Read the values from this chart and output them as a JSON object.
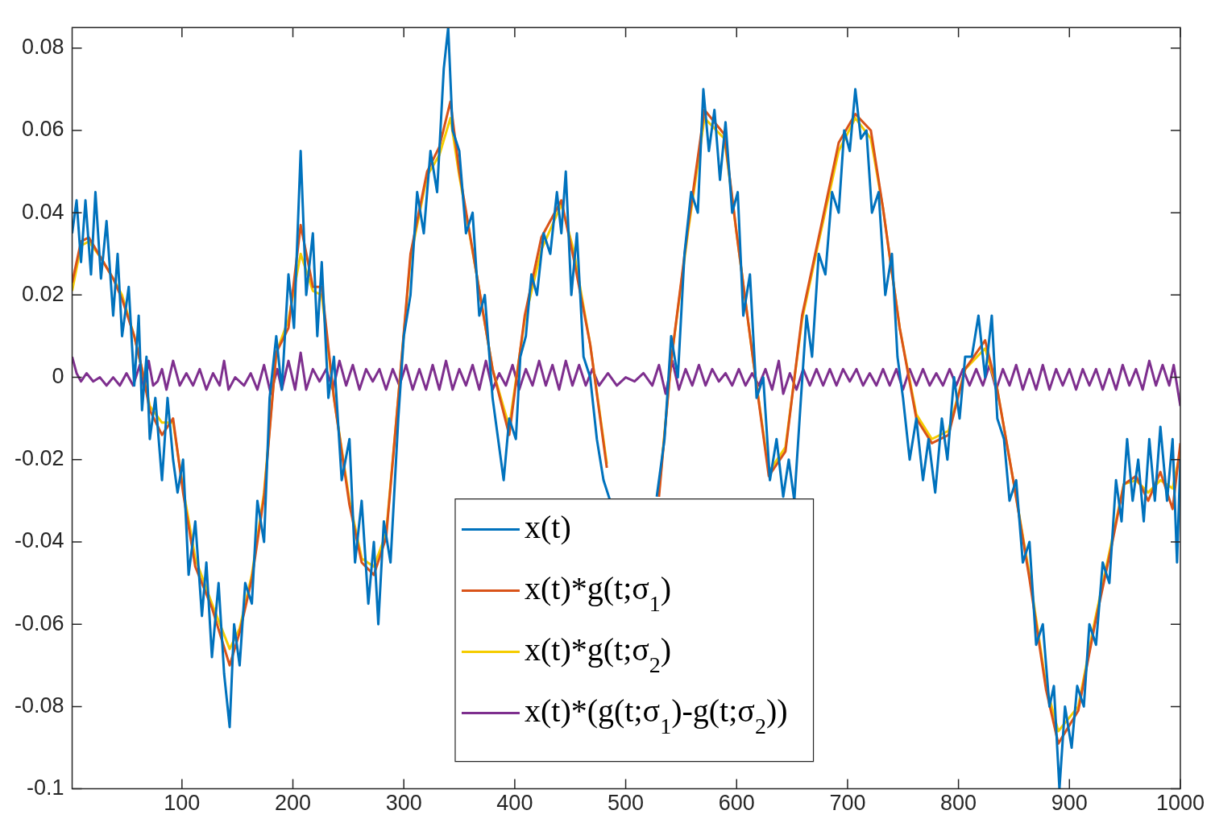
{
  "chart_data": {
    "type": "line",
    "xlim": [
      1,
      1000
    ],
    "xticks": [
      100,
      200,
      300,
      400,
      500,
      600,
      700,
      800,
      900,
      1000
    ],
    "ylim": [
      -0.1,
      0.085
    ],
    "yticks": [
      -0.1,
      -0.08,
      -0.06,
      -0.04,
      -0.02,
      0,
      0.02,
      0.04,
      0.06,
      0.08
    ],
    "grid": false,
    "legend": "bottom",
    "line_style": "solid",
    "marker": "none",
    "series": [
      {
        "name": "x(t)",
        "color": "#0072bd",
        "x": [
          1,
          5,
          9,
          13,
          18,
          22,
          27,
          32,
          38,
          42,
          46,
          52,
          57,
          61,
          64,
          68,
          71,
          76,
          82,
          87,
          92,
          96,
          101,
          106,
          112,
          118,
          122,
          127,
          133,
          138,
          143,
          147,
          152,
          157,
          163,
          168,
          174,
          179,
          185,
          190,
          196,
          201,
          207,
          212,
          218,
          222,
          226,
          232,
          237,
          244,
          251,
          256,
          262,
          268,
          273,
          277,
          282,
          288,
          295,
          300,
          306,
          312,
          318,
          324,
          330,
          336,
          340,
          344,
          350,
          356,
          362,
          368,
          373,
          380,
          385,
          390,
          395,
          401,
          405,
          410,
          415,
          420,
          426,
          432,
          438,
          442,
          446,
          451,
          456,
          462,
          468,
          474,
          480,
          486,
          505,
          528,
          535,
          541,
          547,
          553,
          559,
          565,
          570,
          575,
          580,
          585,
          590,
          596,
          601,
          606,
          612,
          618,
          624,
          630,
          636,
          642,
          647,
          652,
          658,
          663,
          668,
          674,
          680,
          686,
          692,
          697,
          702,
          707,
          712,
          717,
          722,
          728,
          734,
          740,
          745,
          750,
          756,
          762,
          768,
          773,
          779,
          785,
          790,
          796,
          801,
          806,
          812,
          818,
          824,
          830,
          835,
          841,
          846,
          852,
          858,
          864,
          870,
          876,
          882,
          886,
          891,
          896,
          902,
          907,
          913,
          918,
          924,
          930,
          936,
          942,
          947,
          952,
          957,
          962,
          967,
          972,
          977,
          982,
          988,
          993,
          997,
          1000
        ],
        "values": [
          0.035,
          0.043,
          0.028,
          0.043,
          0.025,
          0.045,
          0.024,
          0.038,
          0.015,
          0.03,
          0.01,
          0.022,
          -0.002,
          0.015,
          -0.008,
          0.005,
          -0.015,
          -0.005,
          -0.025,
          -0.005,
          -0.02,
          -0.028,
          -0.02,
          -0.048,
          -0.035,
          -0.058,
          -0.045,
          -0.068,
          -0.05,
          -0.072,
          -0.085,
          -0.06,
          -0.07,
          -0.05,
          -0.055,
          -0.03,
          -0.04,
          -0.005,
          0.01,
          -0.003,
          0.025,
          0.012,
          0.055,
          0.02,
          0.035,
          0.01,
          0.028,
          -0.005,
          0.005,
          -0.025,
          -0.015,
          -0.045,
          -0.03,
          -0.055,
          -0.04,
          -0.06,
          -0.035,
          -0.045,
          -0.01,
          0.01,
          0.02,
          0.045,
          0.035,
          0.055,
          0.045,
          0.075,
          0.085,
          0.06,
          0.055,
          0.035,
          0.04,
          0.015,
          0.02,
          -0.005,
          -0.015,
          -0.025,
          -0.01,
          -0.015,
          0.005,
          0.01,
          0.025,
          0.02,
          0.035,
          0.03,
          0.045,
          0.035,
          0.05,
          0.02,
          0.035,
          0.005,
          0.0,
          -0.015,
          -0.025,
          -0.03,
          null,
          -0.029,
          -0.015,
          0.01,
          0.0,
          0.03,
          0.045,
          0.04,
          0.07,
          0.055,
          0.065,
          0.048,
          0.062,
          0.04,
          0.045,
          0.015,
          0.025,
          -0.005,
          0.0,
          -0.025,
          -0.015,
          -0.029,
          -0.02,
          -0.03,
          -0.005,
          0.015,
          0.005,
          0.03,
          0.025,
          0.045,
          0.04,
          0.06,
          0.055,
          0.07,
          0.058,
          0.06,
          0.04,
          0.045,
          0.02,
          0.03,
          0.005,
          -0.005,
          -0.02,
          -0.01,
          -0.025,
          -0.015,
          -0.028,
          -0.01,
          -0.02,
          0.0,
          -0.01,
          0.005,
          0.005,
          0.015,
          0.0,
          0.015,
          -0.01,
          -0.015,
          -0.03,
          -0.025,
          -0.045,
          -0.04,
          -0.065,
          -0.06,
          -0.08,
          -0.075,
          -0.1,
          -0.08,
          -0.09,
          -0.075,
          -0.08,
          -0.06,
          -0.065,
          -0.045,
          -0.05,
          -0.025,
          -0.035,
          -0.015,
          -0.03,
          -0.02,
          -0.035,
          -0.015,
          -0.03,
          -0.012,
          -0.03,
          -0.015,
          -0.045,
          -0.02
        ]
      },
      {
        "name": "x(t)*g(t;σ$_{1}$)",
        "color": "#d95319",
        "x": [
          1,
          9,
          16,
          27,
          38,
          46,
          57,
          64,
          71,
          82,
          92,
          101,
          112,
          127,
          143,
          152,
          163,
          174,
          185,
          196,
          207,
          218,
          226,
          237,
          251,
          262,
          273,
          284,
          295,
          306,
          321,
          332,
          342,
          350,
          365,
          380,
          395,
          409,
          424,
          442,
          453,
          468,
          483,
          505,
          530,
          541,
          556,
          571,
          589,
          600,
          615,
          629,
          644,
          659,
          674,
          692,
          707,
          721,
          732,
          747,
          762,
          776,
          791,
          806,
          824,
          835,
          850,
          864,
          879,
          890,
          908,
          923,
          938,
          949,
          960,
          971,
          982,
          993,
          1000
        ],
        "values": [
          0.023,
          0.033,
          0.034,
          0.029,
          0.024,
          0.019,
          0.01,
          0.002,
          -0.008,
          -0.014,
          -0.01,
          -0.028,
          -0.046,
          -0.056,
          -0.07,
          -0.062,
          -0.049,
          -0.029,
          0.006,
          0.012,
          0.037,
          0.022,
          0.022,
          -0.005,
          -0.031,
          -0.045,
          -0.048,
          -0.039,
          -0.005,
          0.03,
          0.05,
          0.056,
          0.067,
          0.05,
          0.026,
          0.002,
          -0.014,
          0.015,
          0.034,
          0.043,
          0.029,
          0.008,
          -0.022,
          null,
          -0.029,
          0.004,
          0.036,
          0.065,
          0.059,
          0.035,
          0.004,
          -0.024,
          -0.018,
          0.015,
          0.034,
          0.057,
          0.064,
          0.06,
          0.041,
          0.012,
          -0.01,
          -0.016,
          -0.014,
          0.002,
          0.009,
          -0.003,
          -0.026,
          -0.049,
          -0.076,
          -0.089,
          -0.081,
          -0.06,
          -0.041,
          -0.026,
          -0.024,
          -0.03,
          -0.023,
          -0.032,
          -0.016
        ]
      },
      {
        "name": "x(t)*g(t;σ$_{2}$)",
        "color": "#f5cc00",
        "x": [
          1,
          9,
          16,
          27,
          38,
          46,
          57,
          64,
          71,
          82,
          92,
          101,
          112,
          127,
          143,
          152,
          163,
          174,
          185,
          196,
          207,
          218,
          226,
          237,
          251,
          262,
          273,
          284,
          295,
          306,
          321,
          332,
          342,
          350,
          365,
          380,
          395,
          409,
          424,
          442,
          453,
          468,
          483,
          505,
          530,
          541,
          556,
          571,
          589,
          600,
          615,
          629,
          644,
          659,
          674,
          692,
          707,
          721,
          732,
          747,
          762,
          776,
          791,
          806,
          824,
          835,
          850,
          864,
          879,
          890,
          908,
          923,
          938,
          949,
          960,
          971,
          982,
          993,
          1000
        ],
        "values": [
          0.021,
          0.032,
          0.033,
          0.029,
          0.024,
          0.02,
          0.01,
          0.002,
          -0.007,
          -0.011,
          -0.011,
          -0.027,
          -0.044,
          -0.055,
          -0.066,
          -0.061,
          -0.048,
          -0.028,
          0.006,
          0.014,
          0.03,
          0.021,
          0.02,
          -0.005,
          -0.03,
          -0.044,
          -0.046,
          -0.038,
          -0.005,
          0.029,
          0.049,
          0.054,
          0.063,
          0.049,
          0.026,
          0.002,
          -0.012,
          0.014,
          0.031,
          0.042,
          0.031,
          0.008,
          -0.021,
          null,
          -0.028,
          0.004,
          0.035,
          0.063,
          0.058,
          0.035,
          0.004,
          -0.023,
          -0.017,
          0.014,
          0.033,
          0.055,
          0.063,
          0.058,
          0.041,
          0.012,
          -0.009,
          -0.015,
          -0.013,
          0.002,
          0.007,
          -0.003,
          -0.026,
          -0.048,
          -0.075,
          -0.086,
          -0.08,
          -0.059,
          -0.04,
          -0.026,
          -0.025,
          -0.028,
          -0.025,
          -0.027,
          -0.018
        ]
      },
      {
        "name": "x(t)*(g(t;σ$_{1}$)-g(t;σ$_{2}$))",
        "color": "#7e2f8e",
        "x": [
          1,
          5,
          9,
          14,
          20,
          26,
          32,
          38,
          44,
          50,
          56,
          62,
          66,
          70,
          74,
          78,
          82,
          86,
          92,
          98,
          104,
          110,
          116,
          122,
          128,
          134,
          138,
          142,
          148,
          156,
          162,
          168,
          174,
          180,
          186,
          190,
          196,
          202,
          207,
          212,
          218,
          224,
          230,
          236,
          242,
          248,
          254,
          260,
          266,
          272,
          278,
          284,
          290,
          296,
          302,
          308,
          314,
          320,
          326,
          332,
          338,
          344,
          350,
          356,
          362,
          368,
          374,
          380,
          386,
          392,
          398,
          404,
          410,
          416,
          422,
          428,
          434,
          440,
          446,
          452,
          458,
          464,
          470,
          476,
          484,
          492,
          500,
          508,
          516,
          524,
          530,
          536,
          542,
          548,
          554,
          560,
          566,
          572,
          578,
          584,
          590,
          596,
          602,
          608,
          614,
          620,
          626,
          632,
          638,
          642,
          648,
          654,
          660,
          666,
          672,
          678,
          684,
          690,
          696,
          702,
          708,
          714,
          720,
          726,
          732,
          738,
          744,
          750,
          756,
          762,
          768,
          774,
          780,
          786,
          792,
          798,
          804,
          810,
          816,
          822,
          828,
          834,
          840,
          846,
          852,
          858,
          864,
          870,
          876,
          882,
          888,
          894,
          900,
          906,
          912,
          918,
          924,
          930,
          936,
          942,
          948,
          954,
          960,
          966,
          972,
          978,
          984,
          990,
          994,
          1000
        ],
        "values": [
          0.005,
          0.001,
          -0.001,
          0.001,
          -0.001,
          0.0,
          -0.002,
          0.0,
          -0.002,
          0.001,
          -0.002,
          0.003,
          -0.003,
          0.004,
          -0.002,
          -0.001,
          0.002,
          -0.003,
          0.004,
          -0.002,
          0.001,
          -0.002,
          0.002,
          -0.003,
          0.001,
          -0.002,
          0.004,
          -0.003,
          0.0,
          -0.002,
          0.001,
          -0.003,
          0.003,
          -0.004,
          0.002,
          -0.003,
          0.004,
          -0.003,
          0.006,
          -0.003,
          0.002,
          -0.001,
          0.002,
          -0.003,
          0.004,
          -0.002,
          0.003,
          -0.003,
          0.002,
          -0.001,
          0.002,
          -0.003,
          0.002,
          -0.002,
          0.003,
          -0.003,
          0.002,
          -0.003,
          0.003,
          -0.003,
          0.004,
          -0.003,
          0.002,
          -0.002,
          0.003,
          -0.003,
          0.004,
          -0.003,
          0.001,
          -0.002,
          0.003,
          -0.003,
          0.002,
          -0.002,
          0.004,
          -0.002,
          0.003,
          -0.003,
          0.004,
          -0.002,
          0.003,
          -0.002,
          0.002,
          -0.002,
          0.001,
          -0.002,
          0.0,
          -0.001,
          0.001,
          -0.002,
          0.003,
          -0.004,
          0.004,
          -0.003,
          0.002,
          -0.002,
          0.003,
          -0.002,
          0.002,
          -0.001,
          0.001,
          -0.002,
          0.002,
          -0.002,
          0.001,
          -0.002,
          0.002,
          -0.003,
          0.004,
          -0.004,
          0.001,
          -0.003,
          0.002,
          -0.002,
          0.002,
          -0.002,
          0.002,
          -0.002,
          0.002,
          -0.001,
          0.002,
          -0.002,
          0.001,
          -0.002,
          0.002,
          -0.002,
          0.002,
          -0.003,
          0.002,
          -0.002,
          0.002,
          -0.002,
          0.001,
          -0.002,
          0.002,
          -0.002,
          0.002,
          -0.002,
          0.002,
          -0.002,
          0.003,
          -0.003,
          0.002,
          -0.002,
          0.003,
          -0.003,
          0.002,
          -0.003,
          0.003,
          -0.003,
          0.002,
          -0.002,
          0.002,
          -0.003,
          0.002,
          -0.002,
          0.002,
          -0.003,
          0.002,
          -0.003,
          0.003,
          -0.002,
          0.002,
          -0.003,
          0.004,
          -0.002,
          0.003,
          -0.002,
          0.003,
          -0.007
        ]
      }
    ]
  }
}
